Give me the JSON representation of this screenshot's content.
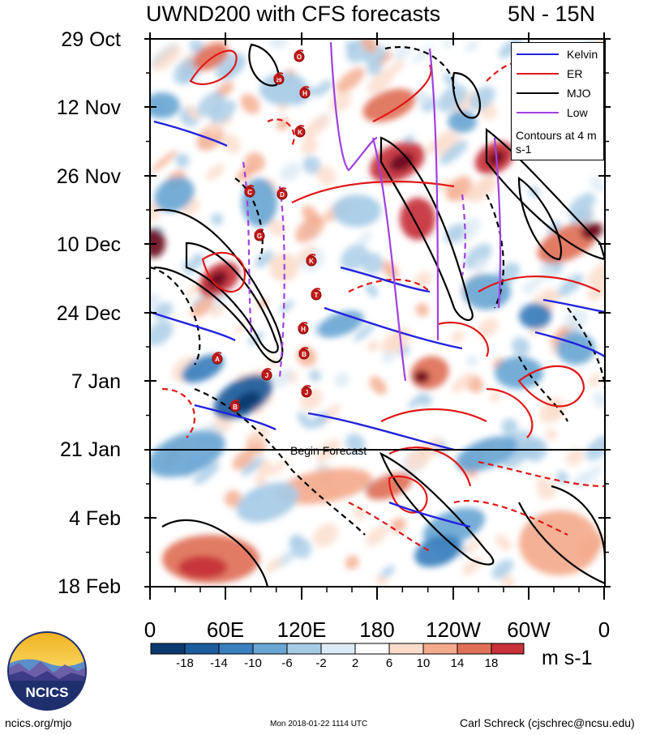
{
  "chart_data": {
    "type": "heatmap",
    "title": "UWND200 with CFS forecasts",
    "region": "5N - 15N",
    "y_tick_labels": [
      "29 Oct",
      "12 Nov",
      "26 Nov",
      "10 Dec",
      "24 Dec",
      "7 Jan",
      "21 Jan",
      "4 Feb",
      "18 Feb"
    ],
    "x_tick_labels": [
      "0",
      "60E",
      "120E",
      "180",
      "120W",
      "60W",
      "0"
    ],
    "x_range_deg_east": [
      0,
      360
    ],
    "colorbar": {
      "labels": [
        "-18",
        "-14",
        "-10",
        "-6",
        "-2",
        "2",
        "6",
        "10",
        "14",
        "18"
      ],
      "colors": [
        "#0b3a6e",
        "#1d5c9c",
        "#3a7fbe",
        "#6aa6d4",
        "#a6cbe6",
        "#dbeaf5",
        "#ffffff",
        "#fbdccb",
        "#f4aa8c",
        "#e07057",
        "#c6313a",
        "#6b0a1f"
      ],
      "units": "m s-1"
    },
    "legend": [
      {
        "name": "Kelvin",
        "color": "#2222dd"
      },
      {
        "name": "ER",
        "color": "#e01818"
      },
      {
        "name": "MJO",
        "color": "#000000"
      },
      {
        "name": "Low",
        "color": "#a040e0"
      }
    ],
    "legend_note": "Contours at 4 m s-1",
    "forecast_line_label": "Begin Forecast",
    "forecast_start": "21 Jan",
    "storm_markers": [
      "O",
      "29",
      "H",
      "K",
      "C",
      "D",
      "G",
      "K",
      "T",
      "H",
      "B",
      "A",
      "J",
      "J",
      "B"
    ]
  },
  "footer": {
    "left": "ncics.org/mjo",
    "middle": "Mon 2018-01-22 1114 UTC",
    "right": "Carl Schreck (cjschrec@ncsu.edu)",
    "logo_text": "NCICS"
  }
}
